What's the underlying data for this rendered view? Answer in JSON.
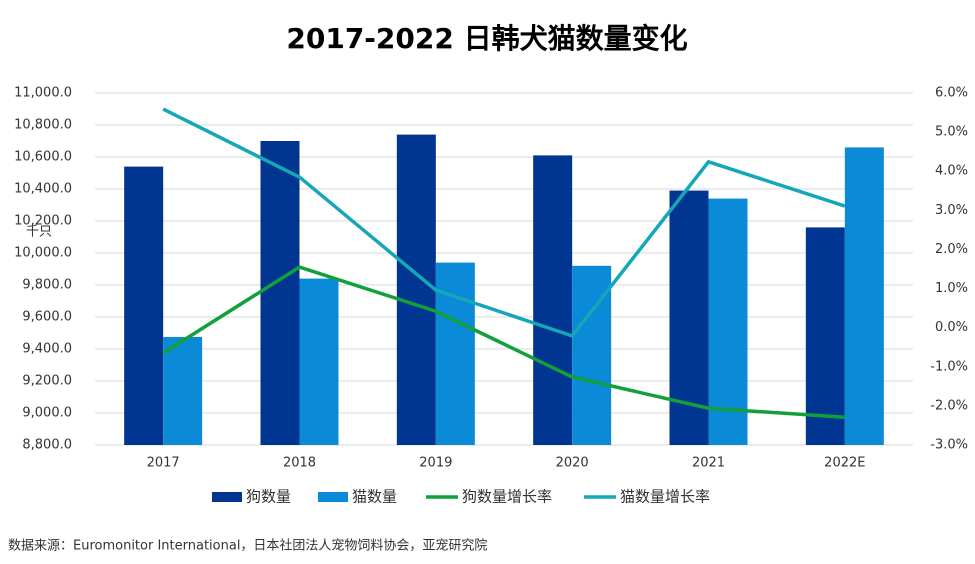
{
  "chart_data": {
    "type": "bar",
    "title": "2017-2022 日韩犬猫数量变化",
    "y_unit_label": "千只",
    "source": "数据来源：Euromonitor International，日本社团法人宠物饲料协会，亚宠研究院",
    "categories": [
      "2017",
      "2018",
      "2019",
      "2020",
      "2021",
      "2022E"
    ],
    "ylim": [
      8800,
      11000
    ],
    "yticks": [
      {
        "value": 8800,
        "label": "8,800.0"
      },
      {
        "value": 9000,
        "label": "9,000.0"
      },
      {
        "value": 9200,
        "label": "9,200.0"
      },
      {
        "value": 9400,
        "label": "9,400.0"
      },
      {
        "value": 9600,
        "label": "9,600.0"
      },
      {
        "value": 9800,
        "label": "9,800.0"
      },
      {
        "value": 10000,
        "label": "10,000.0"
      },
      {
        "value": 10200,
        "label": "10,200.0"
      },
      {
        "value": 10400,
        "label": "10,400.0"
      },
      {
        "value": 10600,
        "label": "10,600.0"
      },
      {
        "value": 10800,
        "label": "10,800.0"
      },
      {
        "value": 11000,
        "label": "11,000.0"
      }
    ],
    "y2lim": [
      -3,
      6
    ],
    "y2ticks": [
      {
        "value": -3,
        "label": "-3.0%"
      },
      {
        "value": -2,
        "label": "-2.0%"
      },
      {
        "value": -1,
        "label": "-1.0%"
      },
      {
        "value": 0,
        "label": "0.0%"
      },
      {
        "value": 1,
        "label": "1.0%"
      },
      {
        "value": 2,
        "label": "2.0%"
      },
      {
        "value": 3,
        "label": "3.0%"
      },
      {
        "value": 4,
        "label": "4.0%"
      },
      {
        "value": 5,
        "label": "5.0%"
      },
      {
        "value": 6,
        "label": "6.0%"
      }
    ],
    "grid": true,
    "legend": "bottom",
    "series": [
      {
        "name": "狗数量",
        "type": "bar",
        "color": "#003591",
        "values": [
          10540,
          10700,
          10740,
          10610,
          10390,
          10160
        ]
      },
      {
        "name": "猫数量",
        "type": "bar",
        "color": "#0b8ad8",
        "values": [
          9475,
          9840,
          9940,
          9920,
          10340,
          10660
        ]
      },
      {
        "name": "狗数量增长率",
        "type": "line",
        "axis": "y2",
        "color": "#12a03c",
        "values": [
          -0.65,
          1.55,
          0.42,
          -1.26,
          -2.06,
          -2.29
        ]
      },
      {
        "name": "猫数量增长率",
        "type": "line",
        "axis": "y2",
        "color": "#14a7b8",
        "values": [
          5.59,
          3.85,
          0.96,
          -0.21,
          4.24,
          3.11
        ]
      }
    ]
  }
}
